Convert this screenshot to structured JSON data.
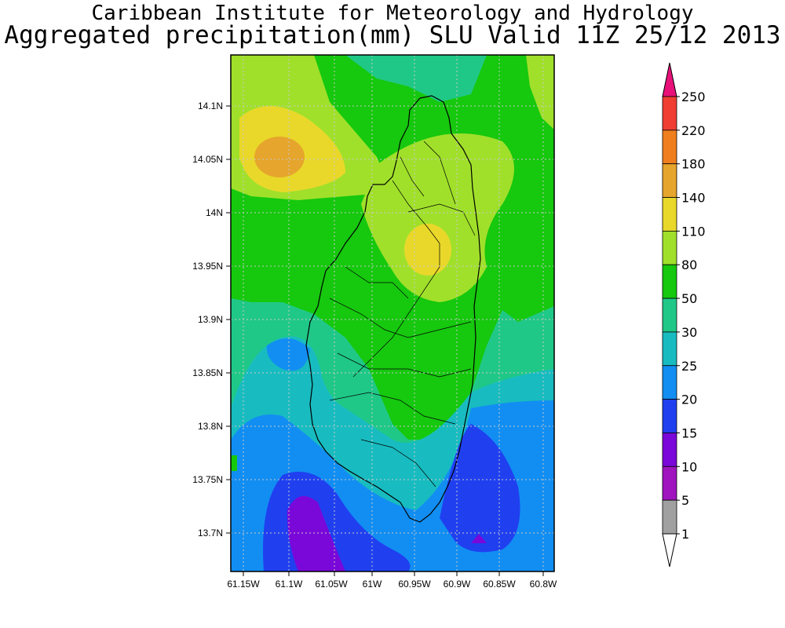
{
  "title": {
    "line1": "Caribbean Institute for Meteorology and Hydrology",
    "line2": "Aggregated precipitation(mm) SLU Valid 11Z 25/12 2013"
  },
  "map": {
    "lat_ticks": [
      "14.1N",
      "14.05N",
      "14N",
      "13.95N",
      "13.9N",
      "13.85N",
      "13.8N",
      "13.75N",
      "13.7N"
    ],
    "lon_ticks": [
      "61.15W",
      "61.1W",
      "61.05W",
      "61W",
      "60.95W",
      "60.9W",
      "60.85W",
      "60.8W"
    ]
  },
  "colorbar": {
    "levels": [
      "250",
      "220",
      "180",
      "140",
      "110",
      "80",
      "50",
      "30",
      "25",
      "20",
      "15",
      "10",
      "5",
      "1"
    ],
    "colors": [
      "#e8117a",
      "#f03e33",
      "#ef7f1e",
      "#e6a52c",
      "#e9d82a",
      "#a0e02b",
      "#16c80e",
      "#20c888",
      "#18bcc0",
      "#128ef2",
      "#2040f0",
      "#7a08d8",
      "#a014c0",
      "#a0a0a0",
      "#ffffff"
    ]
  }
}
